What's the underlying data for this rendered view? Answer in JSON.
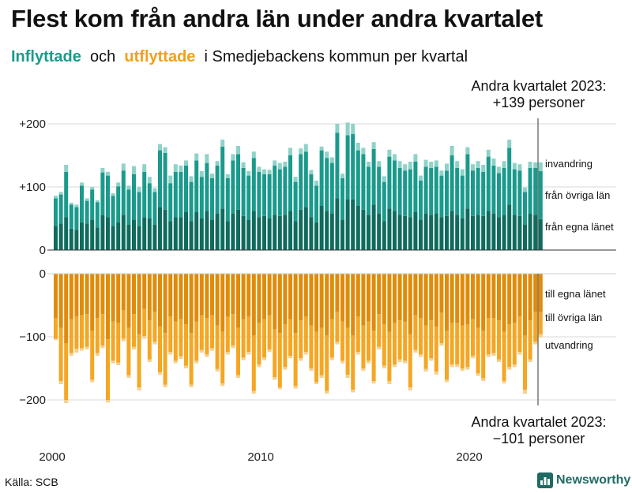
{
  "title": "Flest kom från andra län under andra kvartalet",
  "subtitle": {
    "in_word": "Inflyttade",
    "and_word": "och",
    "out_word": "utflyttade",
    "rest": "i Smedjebackens  kommun per kvartal"
  },
  "source": "Källa: SCB",
  "brand": "Newsworthy",
  "colors": {
    "in_own": "#0f6b5e",
    "in_other": "#1a9a8c",
    "in_imm": "#8fd2c8",
    "out_own": "#e08b0a",
    "out_other": "#f5a623",
    "out_emig": "#f8d08a",
    "grid": "#d9d9d9"
  },
  "chart_data": {
    "type": "bar",
    "subtype": "stacked diverging",
    "x_start": "2000 Q1",
    "quarters_count": 94,
    "x_ticks": [
      "2000",
      "2010",
      "2020"
    ],
    "y_ticks_top": [
      "+200",
      "+100",
      "0"
    ],
    "y_ticks_bottom": [
      "0",
      "−100",
      "−200"
    ],
    "ylim": [
      -210,
      210
    ],
    "annotation_top": [
      "Andra kvartalet 2023:",
      "+139 personer"
    ],
    "annotation_bottom": [
      "Andra kvartalet 2023:",
      "−101 personer"
    ],
    "series_labels": {
      "in_imm": "invandring",
      "in_other": "från övriga län",
      "in_own": "från egna länet",
      "out_own": "till egna länet",
      "out_other": "till övriga län",
      "out_emig": "utvandring"
    },
    "inflow_totals": [
      86,
      92,
      135,
      75,
      72,
      107,
      82,
      100,
      79,
      130,
      124,
      90,
      107,
      137,
      102,
      133,
      100,
      136,
      116,
      98,
      168,
      163,
      118,
      136,
      134,
      142,
      117,
      153,
      125,
      152,
      121,
      141,
      175,
      120,
      152,
      165,
      139,
      125,
      156,
      132,
      128,
      127,
      142,
      138,
      140,
      162,
      116,
      161,
      168,
      127,
      110,
      164,
      156,
      147,
      200,
      121,
      202,
      200,
      170,
      162,
      140,
      171,
      141,
      117,
      159,
      152,
      141,
      136,
      140,
      152,
      118,
      143,
      140,
      142,
      126,
      137,
      165,
      141,
      128,
      163,
      136,
      141,
      135,
      159,
      145,
      132,
      141,
      175,
      138,
      136,
      99,
      140,
      139,
      139
    ],
    "inflow_own": [
      38,
      42,
      52,
      34,
      32,
      44,
      42,
      48,
      36,
      55,
      52,
      38,
      44,
      56,
      40,
      48,
      38,
      52,
      50,
      40,
      68,
      64,
      46,
      52,
      52,
      60,
      46,
      60,
      50,
      62,
      48,
      58,
      66,
      46,
      58,
      64,
      54,
      48,
      62,
      52,
      54,
      50,
      56,
      54,
      56,
      62,
      46,
      64,
      68,
      52,
      44,
      70,
      62,
      58,
      82,
      48,
      80,
      80,
      70,
      64,
      56,
      72,
      58,
      46,
      66,
      62,
      56,
      54,
      52,
      60,
      48,
      58,
      56,
      58,
      52,
      54,
      62,
      56,
      50,
      66,
      54,
      56,
      54,
      62,
      58,
      52,
      56,
      72,
      56,
      54,
      40,
      58,
      56,
      49
    ],
    "inflow_other": [
      44,
      46,
      72,
      38,
      36,
      58,
      36,
      48,
      40,
      68,
      66,
      48,
      57,
      70,
      56,
      72,
      54,
      72,
      56,
      52,
      90,
      90,
      60,
      72,
      72,
      74,
      62,
      82,
      66,
      76,
      66,
      76,
      98,
      68,
      84,
      88,
      76,
      70,
      84,
      72,
      66,
      70,
      78,
      74,
      76,
      88,
      62,
      88,
      88,
      68,
      58,
      88,
      84,
      80,
      104,
      66,
      102,
      104,
      88,
      88,
      76,
      88,
      74,
      62,
      82,
      80,
      74,
      72,
      76,
      80,
      62,
      74,
      74,
      74,
      66,
      72,
      88,
      74,
      68,
      86,
      72,
      74,
      70,
      86,
      76,
      70,
      74,
      90,
      72,
      72,
      52,
      72,
      74,
      76
    ],
    "inflow_imm": [
      4,
      4,
      11,
      3,
      4,
      5,
      4,
      4,
      3,
      7,
      6,
      4,
      6,
      11,
      6,
      13,
      8,
      12,
      10,
      6,
      10,
      9,
      12,
      12,
      10,
      8,
      9,
      11,
      9,
      14,
      7,
      7,
      11,
      6,
      10,
      13,
      9,
      7,
      10,
      8,
      8,
      7,
      8,
      10,
      8,
      12,
      8,
      9,
      12,
      7,
      8,
      6,
      10,
      9,
      14,
      7,
      20,
      16,
      12,
      10,
      8,
      11,
      9,
      9,
      11,
      10,
      11,
      10,
      12,
      12,
      8,
      11,
      10,
      10,
      8,
      11,
      15,
      11,
      10,
      11,
      10,
      11,
      11,
      11,
      11,
      10,
      11,
      13,
      10,
      10,
      7,
      10,
      9,
      14
    ],
    "outflow_totals": [
      105,
      175,
      205,
      130,
      125,
      122,
      120,
      172,
      130,
      118,
      204,
      142,
      145,
      107,
      165,
      120,
      185,
      103,
      140,
      112,
      160,
      180,
      128,
      142,
      135,
      150,
      180,
      142,
      125,
      132,
      122,
      155,
      178,
      128,
      118,
      165,
      137,
      128,
      190,
      148,
      137,
      124,
      168,
      183,
      152,
      134,
      182,
      138,
      128,
      154,
      175,
      165,
      190,
      137,
      112,
      142,
      165,
      188,
      128,
      154,
      142,
      174,
      120,
      150,
      175,
      148,
      140,
      142,
      185,
      125,
      132,
      155,
      138,
      160,
      114,
      172,
      148,
      148,
      154,
      152,
      134,
      162,
      170,
      132,
      130,
      140,
      174,
      152,
      148,
      128,
      190,
      140,
      112,
      101
    ],
    "outflow_own": [
      70,
      86,
      110,
      72,
      68,
      66,
      64,
      90,
      70,
      64,
      104,
      76,
      78,
      58,
      86,
      64,
      96,
      56,
      74,
      60,
      84,
      94,
      68,
      76,
      72,
      80,
      94,
      76,
      66,
      70,
      66,
      82,
      92,
      68,
      64,
      86,
      72,
      68,
      98,
      78,
      72,
      66,
      88,
      94,
      80,
      72,
      94,
      74,
      68,
      82,
      92,
      86,
      98,
      72,
      60,
      76,
      86,
      98,
      68,
      82,
      76,
      90,
      64,
      80,
      92,
      78,
      74,
      76,
      96,
      66,
      70,
      82,
      74,
      84,
      62,
      90,
      78,
      78,
      82,
      80,
      72,
      86,
      90,
      70,
      70,
      74,
      92,
      80,
      78,
      68,
      98,
      74,
      60,
      60
    ],
    "outflow_other": [
      33,
      84,
      90,
      54,
      51,
      52,
      52,
      78,
      56,
      50,
      96,
      62,
      63,
      45,
      75,
      52,
      84,
      43,
      62,
      48,
      72,
      82,
      56,
      62,
      59,
      66,
      82,
      62,
      55,
      58,
      52,
      69,
      82,
      56,
      50,
      75,
      61,
      56,
      88,
      66,
      61,
      54,
      76,
      86,
      68,
      58,
      84,
      60,
      56,
      68,
      80,
      75,
      88,
      61,
      48,
      62,
      74,
      86,
      56,
      68,
      62,
      80,
      52,
      66,
      78,
      66,
      62,
      62,
      84,
      55,
      58,
      69,
      60,
      71,
      48,
      78,
      66,
      66,
      68,
      68,
      58,
      72,
      76,
      58,
      56,
      62,
      78,
      68,
      66,
      56,
      86,
      62,
      48,
      36
    ],
    "outflow_emig": [
      2,
      5,
      5,
      4,
      6,
      4,
      4,
      4,
      4,
      4,
      4,
      4,
      4,
      4,
      4,
      4,
      5,
      4,
      4,
      4,
      4,
      4,
      4,
      4,
      4,
      4,
      4,
      4,
      4,
      4,
      4,
      4,
      4,
      4,
      4,
      4,
      4,
      4,
      4,
      4,
      4,
      4,
      4,
      3,
      4,
      4,
      4,
      4,
      4,
      4,
      3,
      4,
      4,
      4,
      4,
      4,
      5,
      4,
      4,
      4,
      4,
      4,
      4,
      4,
      5,
      4,
      4,
      4,
      5,
      4,
      4,
      4,
      4,
      5,
      4,
      4,
      4,
      4,
      4,
      4,
      4,
      4,
      4,
      4,
      4,
      4,
      4,
      4,
      4,
      4,
      6,
      4,
      4,
      5
    ]
  }
}
